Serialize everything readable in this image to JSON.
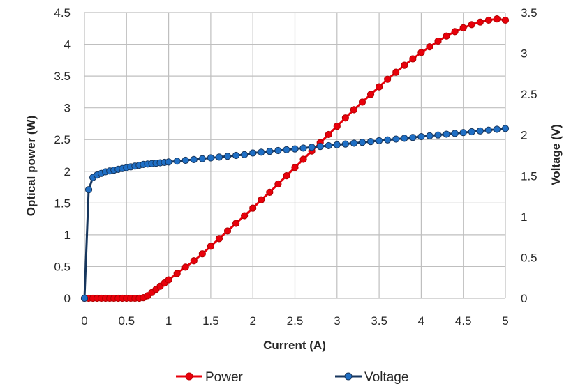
{
  "chart_data": {
    "type": "line",
    "title": "",
    "xlabel": "Current (A)",
    "ylabel": "Optical power (W)",
    "y2label": "Voltage (V)",
    "xlim": [
      0,
      5
    ],
    "ylim": [
      0,
      4.5
    ],
    "y2lim": [
      0,
      3.5
    ],
    "xticks": [
      "0",
      "0.5",
      "1",
      "1.5",
      "2",
      "2.5",
      "3",
      "3.5",
      "4",
      "4.5",
      "5"
    ],
    "yticks": [
      "0",
      "0.5",
      "1",
      "1.5",
      "2",
      "2.5",
      "3",
      "3.5",
      "4",
      "4.5"
    ],
    "y2ticks": [
      "0",
      "0.5",
      "1",
      "1.5",
      "2",
      "2.5",
      "3",
      "3.5"
    ],
    "grid": true,
    "legend_position": "bottom",
    "series": [
      {
        "name": "Power",
        "axis": "left",
        "color": "#e8000b",
        "line_color": "#e8000b",
        "x": [
          0,
          0.05,
          0.1,
          0.15,
          0.2,
          0.25,
          0.3,
          0.35,
          0.4,
          0.45,
          0.5,
          0.55,
          0.6,
          0.65,
          0.7,
          0.75,
          0.8,
          0.85,
          0.9,
          0.95,
          1.0,
          1.1,
          1.2,
          1.3,
          1.4,
          1.5,
          1.6,
          1.7,
          1.8,
          1.9,
          2.0,
          2.1,
          2.2,
          2.3,
          2.4,
          2.5,
          2.6,
          2.7,
          2.8,
          2.9,
          3.0,
          3.1,
          3.2,
          3.3,
          3.4,
          3.5,
          3.6,
          3.7,
          3.8,
          3.9,
          4.0,
          4.1,
          4.2,
          4.3,
          4.4,
          4.5,
          4.6,
          4.7,
          4.8,
          4.9,
          5.0
        ],
        "y": [
          0,
          0,
          0,
          0,
          0,
          0,
          0,
          0,
          0,
          0,
          0,
          0,
          0,
          0,
          0.01,
          0.04,
          0.09,
          0.14,
          0.19,
          0.24,
          0.29,
          0.39,
          0.49,
          0.59,
          0.7,
          0.82,
          0.94,
          1.06,
          1.18,
          1.3,
          1.42,
          1.55,
          1.67,
          1.8,
          1.93,
          2.06,
          2.19,
          2.32,
          2.45,
          2.58,
          2.71,
          2.84,
          2.97,
          3.09,
          3.21,
          3.33,
          3.45,
          3.56,
          3.67,
          3.77,
          3.87,
          3.96,
          4.05,
          4.13,
          4.2,
          4.26,
          4.31,
          4.35,
          4.38,
          4.4,
          4.38
        ]
      },
      {
        "name": "Voltage",
        "axis": "right",
        "color": "#1f6fc5",
        "line_color": "#17365d",
        "x": [
          0,
          0.05,
          0.1,
          0.15,
          0.2,
          0.25,
          0.3,
          0.35,
          0.4,
          0.45,
          0.5,
          0.55,
          0.6,
          0.65,
          0.7,
          0.75,
          0.8,
          0.85,
          0.9,
          0.95,
          1.0,
          1.1,
          1.2,
          1.3,
          1.4,
          1.5,
          1.6,
          1.7,
          1.8,
          1.9,
          2.0,
          2.1,
          2.2,
          2.3,
          2.4,
          2.5,
          2.6,
          2.7,
          2.8,
          2.9,
          3.0,
          3.1,
          3.2,
          3.3,
          3.4,
          3.5,
          3.6,
          3.7,
          3.8,
          3.9,
          4.0,
          4.1,
          4.2,
          4.3,
          4.4,
          4.5,
          4.6,
          4.7,
          4.8,
          4.9,
          5.0
        ],
        "y": [
          0,
          1.33,
          1.48,
          1.51,
          1.53,
          1.55,
          1.56,
          1.57,
          1.58,
          1.59,
          1.6,
          1.61,
          1.62,
          1.63,
          1.64,
          1.645,
          1.65,
          1.655,
          1.66,
          1.665,
          1.67,
          1.68,
          1.69,
          1.7,
          1.71,
          1.72,
          1.73,
          1.74,
          1.75,
          1.76,
          1.78,
          1.79,
          1.8,
          1.81,
          1.82,
          1.83,
          1.84,
          1.85,
          1.86,
          1.87,
          1.88,
          1.89,
          1.9,
          1.91,
          1.92,
          1.93,
          1.94,
          1.95,
          1.96,
          1.97,
          1.98,
          1.99,
          2.0,
          2.01,
          2.02,
          2.03,
          2.04,
          2.05,
          2.06,
          2.07,
          2.08
        ]
      }
    ]
  }
}
